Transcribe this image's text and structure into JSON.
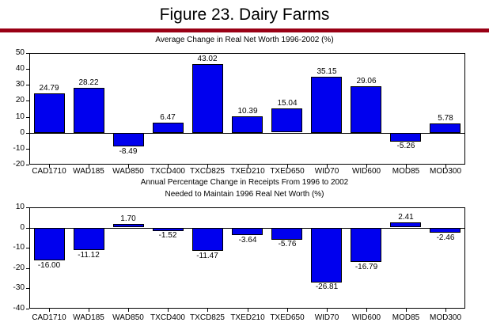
{
  "page": {
    "title": "Figure 23. Dairy Farms",
    "divider_color": "#990015",
    "background": "#FFFFFF",
    "text_color": "#000000"
  },
  "chart_data": [
    {
      "type": "bar",
      "title": "Average Change in Real Net Worth 1996-2002 (%)",
      "categories": [
        "CAD1710",
        "WAD185",
        "WAD850",
        "TXCD400",
        "TXCD825",
        "TXED210",
        "TXED650",
        "WID70",
        "WID600",
        "MOD85",
        "MOD300"
      ],
      "values": [
        24.79,
        28.22,
        -8.49,
        6.47,
        43.02,
        10.39,
        15.04,
        35.15,
        29.06,
        -5.26,
        5.78
      ],
      "value_labels": [
        "24.79",
        "28.22",
        "-8.49",
        "6.47",
        "43.02",
        "10.39",
        "15.04",
        "35.15",
        "29.06",
        "-5.26",
        "5.78"
      ],
      "ylim": [
        -20,
        50
      ],
      "yticks": [
        50,
        40,
        30,
        20,
        10,
        0,
        -10,
        -20
      ],
      "xlabel": "",
      "ylabel": "",
      "grid": false,
      "legend": "none",
      "bar_color": "#0000EE",
      "bar_border_color": "#000000"
    },
    {
      "type": "bar",
      "title": "Annual Percentage Change in Receipts From 1996 to 2002 Needed to Maintain 1996 Real Net Worth (%)",
      "title_lines": [
        "Annual Percentage Change in Receipts From 1996 to 2002",
        "Needed to Maintain 1996 Real Net Worth (%)"
      ],
      "categories": [
        "CAD1710",
        "WAD185",
        "WAD850",
        "TXCD400",
        "TXCD825",
        "TXED210",
        "TXED650",
        "WID70",
        "WID600",
        "MOD85",
        "MOD300"
      ],
      "values": [
        -16.0,
        -11.12,
        1.7,
        -1.52,
        -11.47,
        -3.64,
        -5.76,
        -26.81,
        -16.79,
        2.41,
        -2.46
      ],
      "value_labels": [
        "-16.00",
        "-11.12",
        "1.70",
        "-1.52",
        "-11.47",
        "-3.64",
        "-5.76",
        "-26.81",
        "-16.79",
        "2.41",
        "-2.46"
      ],
      "ylim": [
        -40,
        10
      ],
      "yticks": [
        10,
        0,
        -10,
        -20,
        -30,
        -40
      ],
      "xlabel": "",
      "ylabel": "",
      "grid": false,
      "legend": "none",
      "bar_color": "#0000EE",
      "bar_border_color": "#000000"
    }
  ]
}
